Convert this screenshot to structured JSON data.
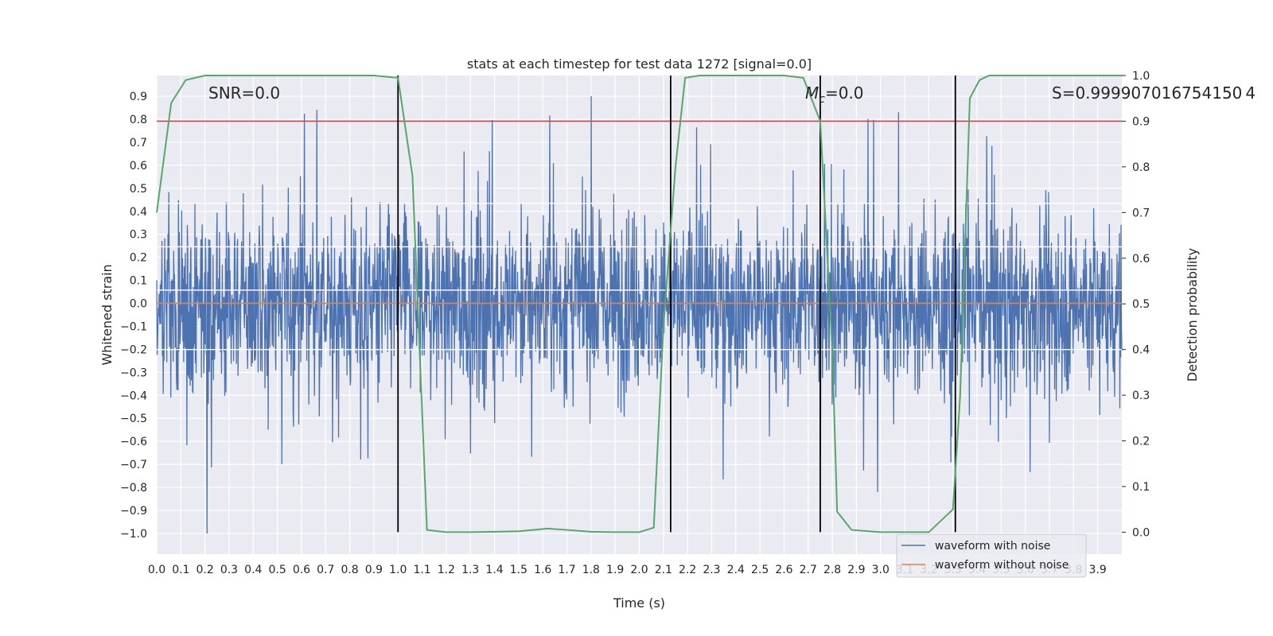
{
  "chart_data": {
    "type": "line",
    "title": "stats at each timestep for test data 1272 [signal=0.0]",
    "xlabel": "Time (s)",
    "ylabel": "Whitened strain",
    "y2label": "Detection probability",
    "xlim": [
      0.0,
      4.0
    ],
    "ylim": [
      -1.09,
      0.99
    ],
    "y2lim": [
      -0.048,
      1.0
    ],
    "x_ticks": [
      "0.0",
      "0.1",
      "0.2",
      "0.3",
      "0.4",
      "0.5",
      "0.6",
      "0.7",
      "0.8",
      "0.9",
      "1.0",
      "1.1",
      "1.2",
      "1.3",
      "1.4",
      "1.5",
      "1.6",
      "1.7",
      "1.8",
      "1.9",
      "2.0",
      "2.1",
      "2.2",
      "2.3",
      "2.4",
      "2.5",
      "2.6",
      "2.7",
      "2.8",
      "2.9",
      "3.0",
      "3.1",
      "3.2",
      "3.3",
      "3.4",
      "3.5",
      "3.6",
      "3.7",
      "3.8",
      "3.9"
    ],
    "y_ticks": [
      "0.9",
      "0.8",
      "0.7",
      "0.6",
      "0.5",
      "0.4",
      "0.3",
      "0.2",
      "0.1",
      "0.0",
      "−0.1",
      "−0.2",
      "−0.3",
      "−0.4",
      "−0.5",
      "−0.6",
      "−0.7",
      "−0.8",
      "−0.9",
      "−1.0"
    ],
    "y2_ticks": [
      "1.0",
      "0.9",
      "0.8",
      "0.7",
      "0.6",
      "0.5",
      "0.4",
      "0.3",
      "0.2",
      "0.1",
      "0.0"
    ],
    "grid": true,
    "legend_position": "lower-right",
    "annotations": {
      "snr": "SNR=0.0",
      "mc_symbol": "M",
      "mc_subscript": "c",
      "mc_value": "=0.0",
      "s": "S=0.999907016754150 4"
    },
    "series": [
      {
        "name": "waveform with noise",
        "color": "#4c72b0",
        "axis": "left",
        "note_shape": "dense noise, mostly within ±0.45 with spikes to 0.9 and −1.0",
        "x_range": [
          0.0,
          4.0
        ],
        "peak_max": 0.9,
        "peak_min": -1.0
      },
      {
        "name": "waveform without noise",
        "color": "#dd8452",
        "axis": "left",
        "x": [
          0.0,
          4.0
        ],
        "y": [
          0.0,
          0.0
        ]
      },
      {
        "color": "#55a868",
        "axis": "right",
        "x": [
          0.0,
          0.06,
          0.12,
          0.2,
          0.3,
          0.5,
          0.7,
          0.9,
          1.0,
          1.06,
          1.12,
          1.2,
          1.3,
          1.5,
          1.62,
          1.7,
          1.8,
          1.9,
          2.0,
          2.06,
          2.1,
          2.15,
          2.19,
          2.25,
          2.4,
          2.6,
          2.68,
          2.75,
          2.8,
          2.82,
          2.88,
          3.0,
          3.1,
          3.2,
          3.3,
          3.33,
          3.37,
          3.41,
          3.45,
          3.6,
          3.8,
          4.0
        ],
        "y": [
          0.7,
          0.94,
          0.99,
          1.0,
          1.0,
          1.0,
          1.0,
          1.0,
          0.995,
          0.78,
          0.005,
          0.0,
          0.0,
          0.002,
          0.008,
          0.005,
          0.001,
          0.0,
          0.0,
          0.01,
          0.45,
          0.8,
          0.995,
          1.0,
          1.0,
          1.0,
          0.995,
          0.9,
          0.4,
          0.045,
          0.005,
          0.0,
          0.0,
          0.0,
          0.05,
          0.3,
          0.95,
          0.99,
          1.0,
          1.0,
          1.0,
          1.0
        ]
      }
    ],
    "threshold_line": {
      "color": "#c44e52",
      "axis": "right",
      "value": 0.9
    },
    "vertical_lines": {
      "color": "#000000",
      "x": [
        1.0,
        2.13,
        2.75,
        3.31
      ],
      "y2_top": 1.0
    },
    "white_lines_y2": [
      0.72,
      0.625,
      0.53,
      0.4
    ]
  }
}
